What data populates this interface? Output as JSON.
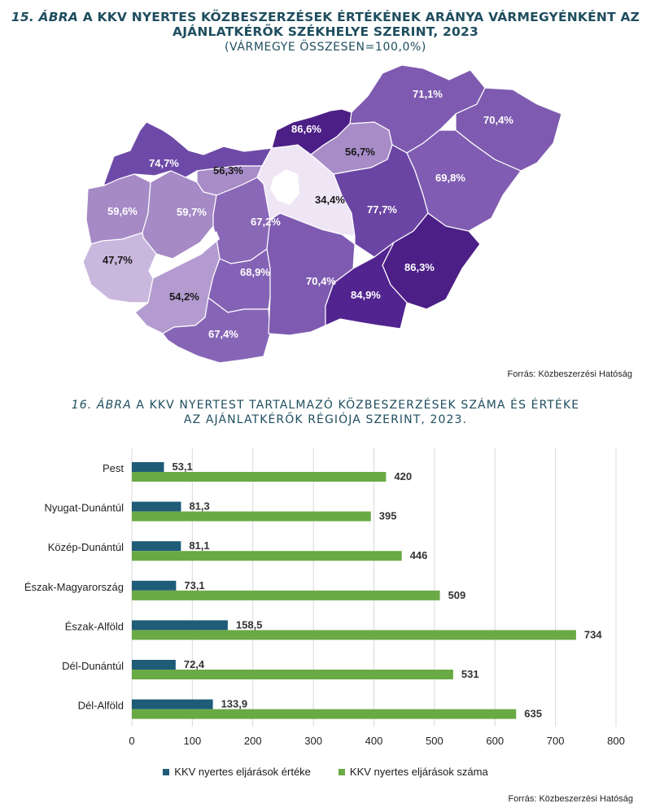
{
  "figure1": {
    "number": "15. ÁBRA",
    "title": "A KKV NYERTES KÖZBESZERZÉSEK ÉRTÉKÉNEK ARÁNYA VÁRMEGYÉNKÉNT AZ",
    "title2": "AJÁNLATKÉRŐK SZÉKHELYE SZERINT, 2023",
    "subtitle": "(VÁRMEGYE ÖSSZESEN=100,0%)",
    "source": "Forrás: Közbeszerzési Hatóság",
    "counties": [
      {
        "id": "gyor-moson-sopron",
        "label": "74,7%",
        "value": 74.7,
        "fill": "#6e4aa8",
        "text": "#ffffff"
      },
      {
        "id": "komarom-esztergom",
        "label": "56,3%",
        "value": 56.3,
        "fill": "#a78cc8",
        "text": "#1a1a1a"
      },
      {
        "id": "vas",
        "label": "59,6%",
        "value": 59.6,
        "fill": "#a58ac6",
        "text": "#ffffff"
      },
      {
        "id": "veszprem",
        "label": "59,7%",
        "value": 59.7,
        "fill": "#a58ac6",
        "text": "#ffffff"
      },
      {
        "id": "fejer",
        "label": "67,2%",
        "value": 67.2,
        "fill": "#8a68b8",
        "text": "#ffffff"
      },
      {
        "id": "zala",
        "label": "47,7%",
        "value": 47.7,
        "fill": "#c9b7de",
        "text": "#1a1a1a"
      },
      {
        "id": "somogy",
        "label": "54,2%",
        "value": 54.2,
        "fill": "#b39bd0",
        "text": "#1a1a1a"
      },
      {
        "id": "tolna",
        "label": "68,9%",
        "value": 68.9,
        "fill": "#8462b5",
        "text": "#ffffff"
      },
      {
        "id": "baranya",
        "label": "67,4%",
        "value": 67.4,
        "fill": "#8765b6",
        "text": "#ffffff"
      },
      {
        "id": "bacs-kiskun",
        "label": "70,4%",
        "value": 70.4,
        "fill": "#7e5bb0",
        "text": "#ffffff"
      },
      {
        "id": "pest",
        "label": "34,4%",
        "value": 34.4,
        "fill": "#eee5f5",
        "text": "#1a1a1a"
      },
      {
        "id": "nograd",
        "label": "86,6%",
        "value": 86.6,
        "fill": "#4c1f86",
        "text": "#ffffff"
      },
      {
        "id": "heves",
        "label": "56,7%",
        "value": 56.7,
        "fill": "#a78cc8",
        "text": "#1a1a1a"
      },
      {
        "id": "borsod",
        "label": "71,1%",
        "value": 71.1,
        "fill": "#7e5bb0",
        "text": "#ffffff"
      },
      {
        "id": "szabolcs",
        "label": "70,4%",
        "value": 70.4,
        "fill": "#7e5bb0",
        "text": "#ffffff"
      },
      {
        "id": "hajdu-bihar",
        "label": "69,8%",
        "value": 69.8,
        "fill": "#805db2",
        "text": "#ffffff"
      },
      {
        "id": "jasz-nagykun-szolnok",
        "label": "77,7%",
        "value": 77.7,
        "fill": "#6b45a4",
        "text": "#ffffff"
      },
      {
        "id": "bekes",
        "label": "86,3%",
        "value": 86.3,
        "fill": "#4c1f86",
        "text": "#ffffff"
      },
      {
        "id": "csongrad",
        "label": "84,9%",
        "value": 84.9,
        "fill": "#522490",
        "text": "#ffffff"
      }
    ]
  },
  "figure2": {
    "number": "16. ÁBRA",
    "title": "A KKV NYERTEST TARTALMAZÓ  KÖZBESZERZÉSEK SZÁMA ÉS ÉRTÉKE",
    "title2": "AZ AJÁNLATKÉRŐK RÉGIÓJA SZERINT, 2023.",
    "source": "Forrás: Közbeszerzési  Hatóság"
  },
  "chart_data": {
    "type": "bar",
    "orientation": "horizontal",
    "categories": [
      "Pest",
      "Nyugat-Dunántúl",
      "Közép-Dunántúl",
      "Észak-Magyarország",
      "Észak-Alföld",
      "Dél-Dunántúl",
      "Dél-Alföld"
    ],
    "series": [
      {
        "name": "KKV nyertes eljárások értéke",
        "color": "#1f5c78",
        "values": [
          53.1,
          81.3,
          81.1,
          73.1,
          158.5,
          72.4,
          133.9
        ],
        "labels": [
          "53,1",
          "81,3",
          "81,1",
          "73,1",
          "158,5",
          "72,4",
          "133,9"
        ]
      },
      {
        "name": "KKV nyertes eljárások száma",
        "color": "#6aaa45",
        "values": [
          420,
          395,
          446,
          509,
          734,
          531,
          635
        ],
        "labels": [
          "420",
          "395",
          "446",
          "509",
          "734",
          "531",
          "635"
        ]
      }
    ],
    "xlim": [
      0,
      800
    ],
    "xticks": [
      "0",
      "100",
      "200",
      "300",
      "400",
      "500",
      "600",
      "700",
      "800"
    ],
    "grid": true,
    "legend": "bottom"
  }
}
